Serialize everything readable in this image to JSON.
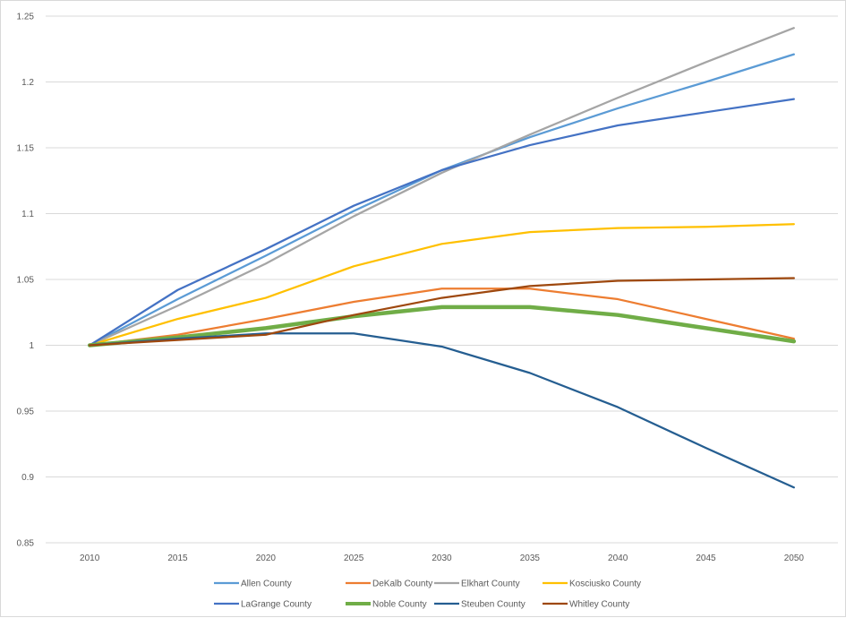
{
  "chart_data": {
    "type": "line",
    "title": "",
    "xlabel": "",
    "ylabel": "",
    "ylim": [
      0.85,
      1.25
    ],
    "y_ticks": [
      "0.85",
      "0.9",
      "0.95",
      "1",
      "1.05",
      "1.1",
      "1.15",
      "1.2",
      "1.25"
    ],
    "grid": true,
    "legend_position": "bottom",
    "categories": [
      "2010",
      "2015",
      "2020",
      "2025",
      "2030",
      "2035",
      "2040",
      "2045",
      "2050"
    ],
    "series": [
      {
        "name": "Allen County",
        "color": "#5B9BD5",
        "values": [
          1.0,
          1.035,
          1.068,
          1.102,
          1.133,
          1.158,
          1.18,
          1.2,
          1.221
        ]
      },
      {
        "name": "DeKalb County",
        "color": "#ED7D31",
        "values": [
          1.0,
          1.008,
          1.02,
          1.033,
          1.043,
          1.043,
          1.035,
          1.02,
          1.005
        ]
      },
      {
        "name": "Elkhart County",
        "color": "#A5A5A5",
        "values": [
          1.0,
          1.03,
          1.062,
          1.098,
          1.131,
          1.16,
          1.188,
          1.215,
          1.241
        ]
      },
      {
        "name": "Kosciusko County",
        "color": "#FFC000",
        "values": [
          1.0,
          1.02,
          1.036,
          1.06,
          1.077,
          1.086,
          1.089,
          1.09,
          1.092
        ]
      },
      {
        "name": "LaGrange County",
        "color": "#4472C4",
        "values": [
          1.0,
          1.042,
          1.073,
          1.106,
          1.133,
          1.152,
          1.167,
          1.177,
          1.187
        ]
      },
      {
        "name": "Noble County",
        "color": "#70AD47",
        "values": [
          1.0,
          1.006,
          1.013,
          1.022,
          1.029,
          1.029,
          1.023,
          1.013,
          1.003
        ],
        "bold": true
      },
      {
        "name": "Steuben County",
        "color": "#255E91",
        "values": [
          1.0,
          1.005,
          1.009,
          1.009,
          0.999,
          0.979,
          0.953,
          0.922,
          0.892
        ]
      },
      {
        "name": "Whitley County",
        "color": "#9E480E",
        "values": [
          1.0,
          1.004,
          1.008,
          1.023,
          1.036,
          1.045,
          1.049,
          1.05,
          1.051
        ]
      }
    ]
  }
}
